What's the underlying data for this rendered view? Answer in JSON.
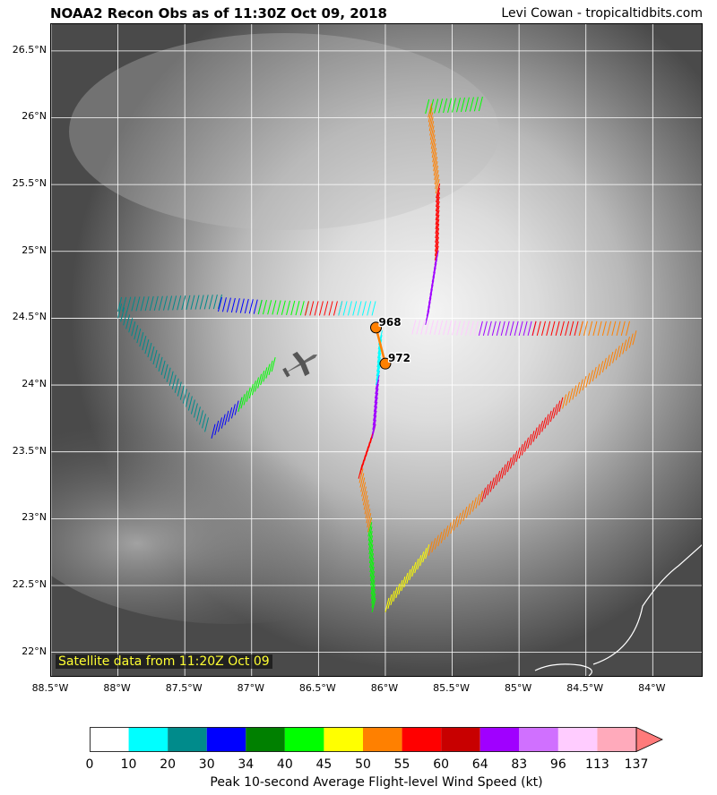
{
  "title": "NOAA2 Recon Obs as of 11:30Z Oct 09, 2018",
  "credit": "Levi Cowan - tropicaltidbits.com",
  "satellite_note": "Satellite data from 11:20Z Oct 09",
  "lat_labels": [
    "26.5°N",
    "26°N",
    "25.5°N",
    "25°N",
    "24.5°N",
    "24°N",
    "23.5°N",
    "23°N",
    "22.5°N",
    "22°N"
  ],
  "lat_values": [
    26.5,
    26.0,
    25.5,
    25.0,
    24.5,
    24.0,
    23.5,
    23.0,
    22.5,
    22.0
  ],
  "lon_labels": [
    "88.5°W",
    "88°W",
    "87.5°W",
    "87°W",
    "86.5°W",
    "86°W",
    "85.5°W",
    "85°W",
    "84.5°W",
    "84°W"
  ],
  "lon_values": [
    -88.5,
    -88.0,
    -87.5,
    -87.0,
    -86.5,
    -86.0,
    -85.5,
    -85.0,
    -84.5,
    -84.0
  ],
  "extent": {
    "lon_min": -88.5,
    "lon_max": -83.62,
    "lat_min": 21.81,
    "lat_max": 26.7
  },
  "pressure_obs": [
    {
      "label": "968",
      "lon": -86.07,
      "lat": 24.43
    },
    {
      "label": "972",
      "lon": -86.0,
      "lat": 24.16
    }
  ],
  "colorbar": {
    "title": "Peak 10-second Average Flight-level Wind Speed (kt)",
    "ticks": [
      "0",
      "10",
      "20",
      "30",
      "34",
      "40",
      "45",
      "50",
      "55",
      "60",
      "64",
      "83",
      "96",
      "113",
      "137"
    ],
    "colors": [
      "#ffffff",
      "#00ffff",
      "#008b8b",
      "#0000ff",
      "#008000",
      "#00ff00",
      "#ffff00",
      "#ff8000",
      "#ff0000",
      "#c80000",
      "#a000ff",
      "#d070ff",
      "#ffccff",
      "#ffaabb"
    ]
  },
  "flight_legs": [
    {
      "lon1": -87.35,
      "lat1": 23.65,
      "lon2": -88.0,
      "lat2": 24.5,
      "color": "#008b8b"
    },
    {
      "lon1": -87.3,
      "lat1": 23.6,
      "lon2": -87.1,
      "lat2": 23.8,
      "color": "#0000ff"
    },
    {
      "lon1": -87.1,
      "lat1": 23.8,
      "lon2": -86.85,
      "lat2": 24.1,
      "color": "#00ff00"
    },
    {
      "lon1": -88.0,
      "lat1": 24.55,
      "lon2": -87.25,
      "lat2": 24.57,
      "color": "#008b8b"
    },
    {
      "lon1": -87.25,
      "lat1": 24.55,
      "lon2": -86.95,
      "lat2": 24.53,
      "color": "#0000ff"
    },
    {
      "lon1": -86.95,
      "lat1": 24.53,
      "lon2": -86.6,
      "lat2": 24.52,
      "color": "#00ff00"
    },
    {
      "lon1": -86.6,
      "lat1": 24.52,
      "lon2": -86.35,
      "lat2": 24.52,
      "color": "#ff0000"
    },
    {
      "lon1": -86.35,
      "lat1": 24.52,
      "lon2": -86.1,
      "lat2": 24.52,
      "color": "#00ffff"
    },
    {
      "lon1": -85.7,
      "lat1": 26.03,
      "lon2": -85.3,
      "lat2": 26.05,
      "color": "#00ff00"
    },
    {
      "lon1": -85.68,
      "lat1": 26.0,
      "lon2": -85.62,
      "lat2": 25.4,
      "color": "#ff8000"
    },
    {
      "lon1": -85.62,
      "lat1": 25.4,
      "lon2": -85.63,
      "lat2": 24.9,
      "color": "#ff0000"
    },
    {
      "lon1": -85.63,
      "lat1": 24.9,
      "lon2": -85.7,
      "lat2": 24.45,
      "color": "#a000ff"
    },
    {
      "lon1": -85.8,
      "lat1": 24.38,
      "lon2": -85.3,
      "lat2": 24.37,
      "color": "#ffccff"
    },
    {
      "lon1": -85.3,
      "lat1": 24.37,
      "lon2": -84.9,
      "lat2": 24.37,
      "color": "#a000ff"
    },
    {
      "lon1": -84.9,
      "lat1": 24.37,
      "lon2": -84.55,
      "lat2": 24.37,
      "color": "#ff0000"
    },
    {
      "lon1": -84.55,
      "lat1": 24.37,
      "lon2": -84.2,
      "lat2": 24.37,
      "color": "#ff8000"
    },
    {
      "lon1": -84.15,
      "lat1": 24.3,
      "lon2": -84.7,
      "lat2": 23.8,
      "color": "#ff8000"
    },
    {
      "lon1": -84.7,
      "lat1": 23.8,
      "lon2": -85.3,
      "lat2": 23.1,
      "color": "#ff0000"
    },
    {
      "lon1": -85.3,
      "lat1": 23.1,
      "lon2": -85.7,
      "lat2": 22.7,
      "color": "#ff8000"
    },
    {
      "lon1": -85.7,
      "lat1": 22.7,
      "lon2": -86.0,
      "lat2": 22.3,
      "color": "#ffff00"
    },
    {
      "lon1": -86.1,
      "lat1": 22.3,
      "lon2": -86.13,
      "lat2": 22.9,
      "color": "#00ff00"
    },
    {
      "lon1": -86.13,
      "lat1": 22.9,
      "lon2": -86.2,
      "lat2": 23.3,
      "color": "#ff8000"
    },
    {
      "lon1": -86.2,
      "lat1": 23.3,
      "lon2": -86.1,
      "lat2": 23.6,
      "color": "#ff0000"
    },
    {
      "lon1": -86.1,
      "lat1": 23.6,
      "lon2": -86.07,
      "lat2": 24.0,
      "color": "#a000ff"
    },
    {
      "lon1": -86.07,
      "lat1": 24.0,
      "lon2": -86.05,
      "lat2": 24.3,
      "color": "#00ffff"
    }
  ]
}
